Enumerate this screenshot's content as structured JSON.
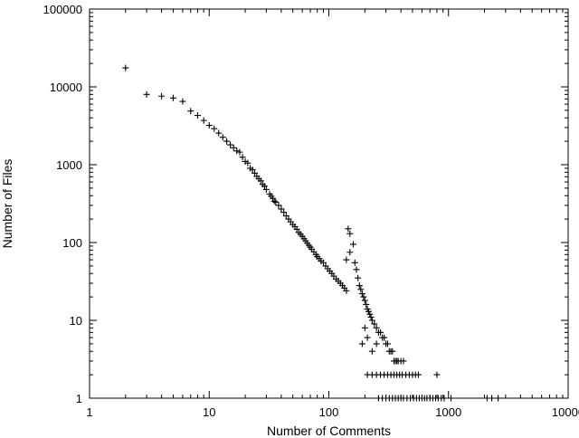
{
  "chart_data": {
    "type": "scatter",
    "xlabel": "Number of Comments",
    "ylabel": "Number of Files",
    "x_scale": "log",
    "y_scale": "log",
    "xlim": [
      1,
      10000
    ],
    "ylim": [
      1,
      100000
    ],
    "grid": false,
    "legend": "none",
    "marker": "+",
    "color": "#000000",
    "x_ticks": [
      "1",
      "10",
      "100",
      "1000",
      "10000"
    ],
    "y_ticks": [
      "1",
      "10",
      "100",
      "1000",
      "10000",
      "100000"
    ],
    "x_tick_values": [
      1,
      10,
      100,
      1000,
      10000
    ],
    "y_tick_values": [
      1,
      10,
      100,
      1000,
      10000,
      100000
    ],
    "series": [
      {
        "points": [
          [
            2,
            17500
          ],
          [
            3,
            8000
          ],
          [
            4,
            7600
          ],
          [
            5,
            7200
          ],
          [
            6,
            6500
          ],
          [
            7,
            4900
          ],
          [
            8,
            4300
          ],
          [
            9,
            3700
          ],
          [
            10,
            3200
          ],
          [
            11,
            2900
          ],
          [
            12,
            2550
          ],
          [
            13,
            2250
          ],
          [
            14,
            2000
          ],
          [
            15,
            1800
          ],
          [
            16,
            1650
          ],
          [
            17,
            1500
          ],
          [
            18,
            1450
          ],
          [
            19,
            1250
          ],
          [
            20,
            1100
          ],
          [
            21,
            1050
          ],
          [
            22,
            900
          ],
          [
            23,
            860
          ],
          [
            24,
            780
          ],
          [
            25,
            710
          ],
          [
            26,
            660
          ],
          [
            27,
            620
          ],
          [
            28,
            560
          ],
          [
            29,
            530
          ],
          [
            30,
            480
          ],
          [
            32,
            420
          ],
          [
            33,
            395
          ],
          [
            34,
            370
          ],
          [
            35,
            340
          ],
          [
            36,
            330
          ],
          [
            38,
            300
          ],
          [
            40,
            270
          ],
          [
            42,
            245
          ],
          [
            44,
            220
          ],
          [
            46,
            200
          ],
          [
            48,
            185
          ],
          [
            50,
            170
          ],
          [
            52,
            160
          ],
          [
            54,
            148
          ],
          [
            56,
            135
          ],
          [
            58,
            128
          ],
          [
            60,
            120
          ],
          [
            62,
            112
          ],
          [
            64,
            105
          ],
          [
            66,
            98
          ],
          [
            68,
            92
          ],
          [
            70,
            87
          ],
          [
            72,
            82
          ],
          [
            75,
            76
          ],
          [
            78,
            70
          ],
          [
            80,
            66
          ],
          [
            83,
            62
          ],
          [
            86,
            58
          ],
          [
            90,
            55
          ],
          [
            94,
            50
          ],
          [
            98,
            46
          ],
          [
            102,
            43
          ],
          [
            106,
            40
          ],
          [
            110,
            37
          ],
          [
            115,
            34
          ],
          [
            120,
            32
          ],
          [
            125,
            30
          ],
          [
            130,
            28
          ],
          [
            135,
            26
          ],
          [
            140,
            24
          ],
          [
            145,
            150
          ],
          [
            150,
            130
          ],
          [
            140,
            60
          ],
          [
            150,
            75
          ],
          [
            160,
            95
          ],
          [
            165,
            55
          ],
          [
            170,
            45
          ],
          [
            175,
            35
          ],
          [
            180,
            28
          ],
          [
            185,
            25
          ],
          [
            190,
            22
          ],
          [
            195,
            20
          ],
          [
            200,
            18
          ],
          [
            205,
            16
          ],
          [
            210,
            14
          ],
          [
            215,
            13
          ],
          [
            220,
            12
          ],
          [
            225,
            11
          ],
          [
            230,
            10
          ],
          [
            240,
            9
          ],
          [
            250,
            8
          ],
          [
            260,
            7
          ],
          [
            270,
            7
          ],
          [
            280,
            6
          ],
          [
            290,
            6
          ],
          [
            300,
            5
          ],
          [
            310,
            5
          ],
          [
            320,
            4
          ],
          [
            330,
            4
          ],
          [
            340,
            4
          ],
          [
            350,
            3
          ],
          [
            360,
            3
          ],
          [
            370,
            3
          ],
          [
            380,
            3
          ],
          [
            400,
            3
          ],
          [
            420,
            3
          ],
          [
            190,
            5
          ],
          [
            210,
            6
          ],
          [
            230,
            4
          ],
          [
            250,
            5
          ],
          [
            200,
            8
          ],
          [
            210,
            2
          ],
          [
            230,
            2
          ],
          [
            250,
            2
          ],
          [
            270,
            2
          ],
          [
            290,
            2
          ],
          [
            310,
            2
          ],
          [
            330,
            2
          ],
          [
            350,
            2
          ],
          [
            370,
            2
          ],
          [
            390,
            2
          ],
          [
            410,
            2
          ],
          [
            440,
            2
          ],
          [
            470,
            2
          ],
          [
            500,
            2
          ],
          [
            530,
            2
          ],
          [
            560,
            2
          ],
          [
            800,
            2
          ],
          [
            260,
            1
          ],
          [
            280,
            1
          ],
          [
            300,
            1
          ],
          [
            320,
            1
          ],
          [
            340,
            1
          ],
          [
            360,
            1
          ],
          [
            380,
            1
          ],
          [
            400,
            1
          ],
          [
            420,
            1
          ],
          [
            450,
            1
          ],
          [
            480,
            1
          ],
          [
            510,
            1
          ],
          [
            540,
            1
          ],
          [
            570,
            1
          ],
          [
            600,
            1
          ],
          [
            630,
            1
          ],
          [
            660,
            1
          ],
          [
            700,
            1
          ],
          [
            740,
            1
          ],
          [
            780,
            1
          ],
          [
            820,
            1
          ],
          [
            870,
            1
          ],
          [
            920,
            1
          ],
          [
            1050,
            1
          ],
          [
            2100,
            1
          ],
          [
            2300,
            1
          ],
          [
            2600,
            1
          ]
        ]
      }
    ]
  }
}
